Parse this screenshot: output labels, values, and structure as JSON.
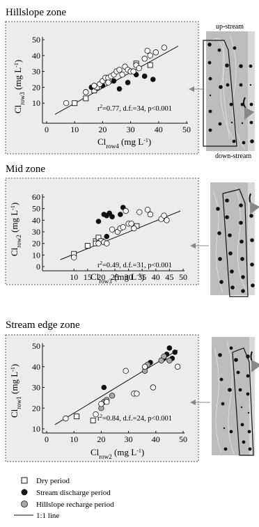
{
  "panels": [
    {
      "title": "Hillslope zone",
      "x_label": "Cl",
      "x_sub": "row4",
      "x_unit": " (mg L",
      "y_label": "Cl",
      "y_sub": "row3",
      "y_unit": " (mg L",
      "unit_exp": "-1",
      "unit_close": ")",
      "stats_r2": "=0.77, d.f.=34, p<0.001",
      "map_top_label": "up-stream",
      "map_bottom_label": "down-stream"
    },
    {
      "title": "Mid zone",
      "x_label": "Cl",
      "x_sub": "row3",
      "x_unit": " (mg L",
      "y_label": "Cl",
      "y_sub": "row2",
      "y_unit": " (mg L",
      "unit_exp": "-1",
      "unit_close": ")",
      "stats_r2": "=0.49, d.f.=31, p<0.001"
    },
    {
      "title": "Stream edge zone",
      "x_label": "Cl",
      "x_sub": "row2",
      "x_unit": " (mg L",
      "y_label": "Cl",
      "y_sub": "row1",
      "y_unit": " (mg L",
      "unit_exp": "-1",
      "unit_close": ")",
      "stats_r2": "=0.84, d.f.=24, p<0.001"
    }
  ],
  "stats_prefix": "r",
  "stats_exp": "2",
  "legend": [
    {
      "label": "Dry period",
      "marker": "square-open"
    },
    {
      "label": "Stream discharge  period",
      "marker": "circle-filled"
    },
    {
      "label": "Hillslope recharge  period",
      "marker": "circle-gray"
    },
    {
      "label": "1:1 line",
      "marker": "line"
    }
  ],
  "colors": {
    "panel_bg": "#ececec",
    "discharge": "#111111",
    "recharge": "#a8a8a8",
    "map_bg": "#bdbdbd"
  },
  "chart_data": [
    {
      "type": "scatter",
      "title": "Hillslope zone",
      "xlim": [
        0,
        50
      ],
      "ylim": [
        0,
        50
      ],
      "xticks": [
        0,
        10,
        20,
        30,
        40,
        50
      ],
      "yticks": [
        10,
        20,
        30,
        40,
        50
      ],
      "legend": "below all panels",
      "fit_line": {
        "x": [
          3,
          47
        ],
        "y": [
          3,
          46
        ]
      },
      "series": [
        {
          "name": "Dry period",
          "marker": "square-open",
          "points": [
            [
              10,
              10
            ],
            [
              14,
              13
            ],
            [
              17,
              18
            ],
            [
              18,
              20
            ],
            [
              32,
              35
            ],
            [
              37,
              34
            ]
          ]
        },
        {
          "name": "Stream discharge  period",
          "marker": "circle-filled",
          "points": [
            [
              16,
              20
            ],
            [
              20,
              21
            ],
            [
              24,
              24
            ],
            [
              26,
              19
            ],
            [
              29,
              23
            ],
            [
              32,
              28
            ],
            [
              35,
              27
            ],
            [
              38,
              25
            ]
          ]
        },
        {
          "name": "Hillslope recharge  period",
          "marker": "circle-open",
          "points": [
            [
              7,
              10
            ],
            [
              14,
              17
            ],
            [
              17,
              21
            ],
            [
              19,
              22
            ],
            [
              20,
              24
            ],
            [
              21,
              26
            ],
            [
              22,
              26
            ],
            [
              22,
              23
            ],
            [
              23,
              27
            ],
            [
              24,
              28
            ],
            [
              25,
              30
            ],
            [
              26,
              31
            ],
            [
              27,
              28
            ],
            [
              28,
              33
            ],
            [
              29,
              31
            ],
            [
              30,
              30
            ],
            [
              31,
              30
            ],
            [
              32,
              34
            ],
            [
              33,
              32
            ],
            [
              35,
              38
            ],
            [
              36,
              43
            ],
            [
              37,
              40
            ],
            [
              39,
              42
            ],
            [
              42,
              45
            ]
          ]
        }
      ]
    },
    {
      "type": "scatter",
      "title": "Mid zone",
      "xlim": [
        0,
        50
      ],
      "ylim": [
        0,
        60
      ],
      "xticks": [
        10,
        15,
        20,
        25,
        30,
        35,
        40,
        45,
        50
      ],
      "yticks": [
        0,
        10,
        20,
        30,
        40,
        50,
        60
      ],
      "legend": "below all panels",
      "fit_line": {
        "x": [
          5,
          49
        ],
        "y": [
          6,
          48
        ]
      },
      "series": [
        {
          "name": "Dry period",
          "marker": "square-open",
          "points": [
            [
              10,
              11
            ],
            [
              15,
              18
            ],
            [
              18,
              22
            ],
            [
              18,
              20
            ],
            [
              19,
              25
            ],
            [
              20,
              22
            ],
            [
              33,
              35
            ]
          ]
        },
        {
          "name": "Stream discharge  period",
          "marker": "circle-filled",
          "points": [
            [
              19,
              39
            ],
            [
              21,
              45
            ],
            [
              22,
              44
            ],
            [
              23,
              46
            ],
            [
              24,
              43
            ],
            [
              27,
              45
            ],
            [
              28,
              51
            ],
            [
              22,
              26
            ]
          ]
        },
        {
          "name": "Hillslope recharge  period",
          "marker": "circle-open",
          "points": [
            [
              10,
              8
            ],
            [
              19,
              20
            ],
            [
              21,
              21
            ],
            [
              22,
              20
            ],
            [
              24,
              32
            ],
            [
              26,
              30
            ],
            [
              27,
              33
            ],
            [
              28,
              34
            ],
            [
              29,
              48
            ],
            [
              30,
              37
            ],
            [
              31,
              37
            ],
            [
              32,
              33
            ],
            [
              34,
              47
            ],
            [
              37,
              49
            ],
            [
              38,
              45
            ],
            [
              42,
              41
            ],
            [
              43,
              44
            ],
            [
              44,
              40
            ]
          ]
        }
      ]
    },
    {
      "type": "scatter",
      "title": "Stream edge zone",
      "xlim": [
        0,
        50
      ],
      "ylim": [
        10,
        50
      ],
      "xticks": [
        0,
        10,
        20,
        30,
        40,
        50
      ],
      "yticks": [
        10,
        20,
        30,
        40,
        50
      ],
      "legend": "below all panels",
      "fit_line": {
        "x": [
          3,
          48
        ],
        "y": [
          12,
          48
        ]
      },
      "series": [
        {
          "name": "Dry period",
          "marker": "square-open",
          "points": [
            [
              11,
              16
            ],
            [
              17,
              14
            ]
          ]
        },
        {
          "name": "Stream discharge  period",
          "marker": "circle-filled",
          "points": [
            [
              21,
              30
            ],
            [
              38,
              42
            ],
            [
              43,
              44
            ],
            [
              44,
              46
            ],
            [
              45,
              49
            ],
            [
              46,
              44
            ],
            [
              47,
              47
            ]
          ]
        },
        {
          "name": "Hillslope recharge  period",
          "marker": "circle-gray",
          "points": [
            [
              20,
              20
            ],
            [
              21,
              23
            ],
            [
              22,
              24
            ],
            [
              24,
              26
            ],
            [
              36,
              38
            ],
            [
              37,
              41
            ],
            [
              42,
              43
            ],
            [
              43,
              45
            ],
            [
              45,
              43
            ]
          ]
        },
        {
          "name": "",
          "marker": "circle-open",
          "points": [
            [
              7,
              15
            ],
            [
              18,
              17
            ],
            [
              20,
              22
            ],
            [
              22,
              23
            ],
            [
              29,
              38
            ],
            [
              32,
              27
            ],
            [
              33,
              27
            ],
            [
              36,
              40
            ],
            [
              39,
              30
            ],
            [
              48,
              40
            ]
          ]
        }
      ]
    }
  ]
}
